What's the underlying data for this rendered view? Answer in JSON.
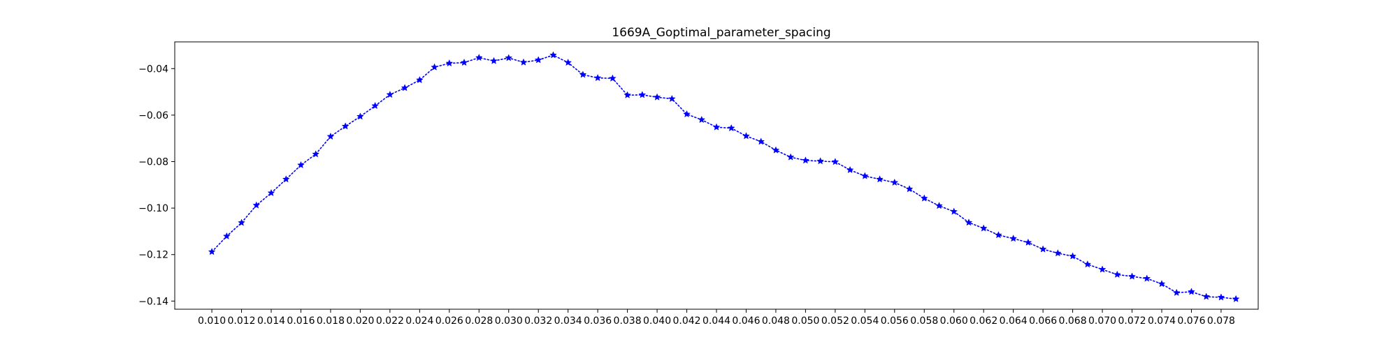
{
  "chart_data": {
    "type": "line",
    "title": "1669A_Goptimal_parameter_spacing",
    "xlabel": "",
    "ylabel": "",
    "xlim": [
      0.0075,
      0.0805
    ],
    "ylim": [
      -0.1435,
      -0.0285
    ],
    "x_ticks": [
      "0.010",
      "0.012",
      "0.014",
      "0.016",
      "0.018",
      "0.020",
      "0.022",
      "0.024",
      "0.026",
      "0.028",
      "0.030",
      "0.032",
      "0.034",
      "0.036",
      "0.038",
      "0.040",
      "0.042",
      "0.044",
      "0.046",
      "0.048",
      "0.050",
      "0.052",
      "0.054",
      "0.056",
      "0.058",
      "0.060",
      "0.062",
      "0.064",
      "0.066",
      "0.068",
      "0.070",
      "0.072",
      "0.074",
      "0.076",
      "0.078"
    ],
    "y_ticks": [
      "−0.04",
      "−0.06",
      "−0.08",
      "−0.10",
      "−0.12",
      "−0.14"
    ],
    "y_tick_values": [
      -0.04,
      -0.06,
      -0.08,
      -0.1,
      -0.12,
      -0.14
    ],
    "grid": false,
    "line_style": "dotted",
    "marker": "star",
    "color": "#0000ff",
    "x": [
      0.01,
      0.011,
      0.012,
      0.013,
      0.014,
      0.015,
      0.016,
      0.017,
      0.018,
      0.019,
      0.02,
      0.021,
      0.022,
      0.023,
      0.024,
      0.025,
      0.026,
      0.027,
      0.028,
      0.029,
      0.03,
      0.031,
      0.032,
      0.033,
      0.034,
      0.035,
      0.036,
      0.037,
      0.038,
      0.039,
      0.04,
      0.041,
      0.042,
      0.043,
      0.044,
      0.045,
      0.046,
      0.047,
      0.048,
      0.049,
      0.05,
      0.051,
      0.052,
      0.053,
      0.054,
      0.055,
      0.056,
      0.057,
      0.058,
      0.059,
      0.06,
      0.061,
      0.062,
      0.063,
      0.064,
      0.065,
      0.066,
      0.067,
      0.068,
      0.069,
      0.07,
      0.071,
      0.072,
      0.073,
      0.074,
      0.075,
      0.076,
      0.077,
      0.078,
      0.079
    ],
    "y": [
      -0.1188,
      -0.1121,
      -0.1063,
      -0.0988,
      -0.0935,
      -0.0876,
      -0.0815,
      -0.0768,
      -0.0692,
      -0.0648,
      -0.0606,
      -0.056,
      -0.0512,
      -0.0483,
      -0.0449,
      -0.0394,
      -0.0377,
      -0.0374,
      -0.0353,
      -0.0367,
      -0.0354,
      -0.0373,
      -0.0363,
      -0.0342,
      -0.0374,
      -0.0426,
      -0.044,
      -0.0442,
      -0.0514,
      -0.0513,
      -0.0523,
      -0.053,
      -0.0596,
      -0.062,
      -0.0652,
      -0.0656,
      -0.069,
      -0.0714,
      -0.0751,
      -0.0781,
      -0.0795,
      -0.0798,
      -0.0801,
      -0.0836,
      -0.0862,
      -0.0876,
      -0.089,
      -0.0918,
      -0.0958,
      -0.099,
      -0.1015,
      -0.1062,
      -0.1087,
      -0.1116,
      -0.1131,
      -0.1148,
      -0.1177,
      -0.1194,
      -0.1207,
      -0.1242,
      -0.1264,
      -0.1286,
      -0.1294,
      -0.1303,
      -0.1326,
      -0.1364,
      -0.136,
      -0.1381,
      -0.1384,
      -0.1391
    ]
  }
}
